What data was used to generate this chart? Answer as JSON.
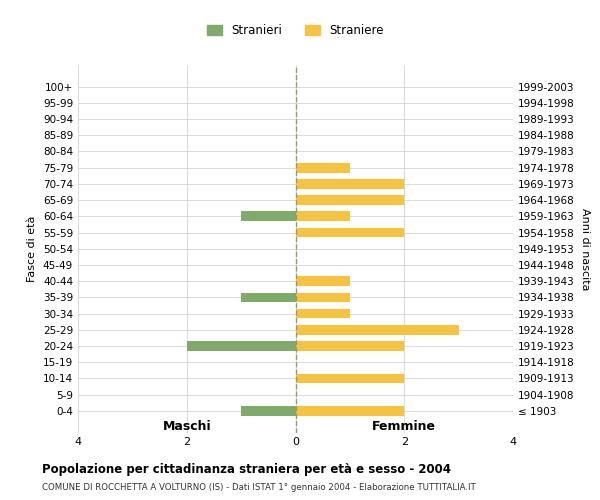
{
  "age_groups": [
    "100+",
    "95-99",
    "90-94",
    "85-89",
    "80-84",
    "75-79",
    "70-74",
    "65-69",
    "60-64",
    "55-59",
    "50-54",
    "45-49",
    "40-44",
    "35-39",
    "30-34",
    "25-29",
    "20-24",
    "15-19",
    "10-14",
    "5-9",
    "0-4"
  ],
  "birth_years": [
    "≤ 1903",
    "1904-1908",
    "1909-1913",
    "1914-1918",
    "1919-1923",
    "1924-1928",
    "1929-1933",
    "1934-1938",
    "1939-1943",
    "1944-1948",
    "1949-1953",
    "1954-1958",
    "1959-1963",
    "1964-1968",
    "1969-1973",
    "1974-1978",
    "1979-1983",
    "1984-1988",
    "1989-1993",
    "1994-1998",
    "1999-2003"
  ],
  "maschi": [
    0,
    0,
    0,
    0,
    0,
    0,
    0,
    0,
    1,
    0,
    0,
    0,
    0,
    1,
    0,
    0,
    2,
    0,
    0,
    0,
    1
  ],
  "femmine": [
    0,
    0,
    0,
    0,
    0,
    1,
    2,
    2,
    1,
    2,
    0,
    0,
    1,
    1,
    1,
    3,
    2,
    0,
    2,
    0,
    2
  ],
  "color_maschi": "#7faa6a",
  "color_femmine": "#f5c242",
  "title": "Popolazione per cittadinanza straniera per età e sesso - 2004",
  "subtitle": "COMUNE DI ROCCHETTA A VOLTURNO (IS) - Dati ISTAT 1° gennaio 2004 - Elaborazione TUTTITALIA.IT",
  "xlabel_left": "Maschi",
  "xlabel_right": "Femmine",
  "ylabel_left": "Fasce di età",
  "ylabel_right": "Anni di nascita",
  "legend_maschi": "Stranieri",
  "legend_femmine": "Straniere",
  "xlim": 4,
  "background_color": "#ffffff",
  "grid_color": "#cccccc"
}
